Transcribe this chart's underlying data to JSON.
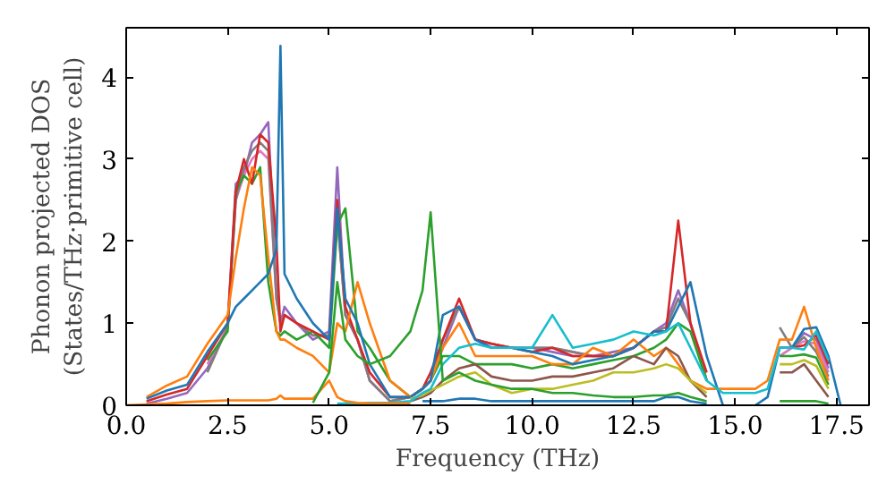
{
  "chart_data": {
    "type": "line",
    "xlabel": "Frequency (THz)",
    "ylabel": "Phonon projected DOS\n(States/THz·primitive cell)",
    "xlim": [
      0,
      18.3
    ],
    "ylim": [
      0,
      4.6
    ],
    "xticks": [
      {
        "value": 0,
        "label": "0.0"
      },
      2.5,
      {
        "value": 5,
        "label": "5.0"
      },
      7.5,
      {
        "value": 10,
        "label": "10.0"
      },
      12.5,
      {
        "value": 15,
        "label": "15.0"
      },
      17.5
    ],
    "yticks": [
      0,
      1,
      2,
      3,
      4
    ],
    "grid": false,
    "marker": "none",
    "line_style": "solid",
    "x": [
      0,
      0.5,
      1,
      1.5,
      2,
      2.5,
      2.7,
      2.9,
      3.1,
      3.3,
      3.5,
      3.7,
      3.8,
      3.9,
      4.2,
      4.6,
      5.0,
      5.2,
      5.4,
      5.7,
      6.0,
      6.5,
      7.0,
      7.3,
      7.5,
      7.8,
      8.2,
      8.6,
      9,
      9.5,
      10,
      10.5,
      11,
      11.5,
      12,
      12.5,
      13,
      13.3,
      13.6,
      13.9,
      14.3,
      14.7,
      15,
      15.5,
      15.8,
      16.1,
      16.4,
      16.7,
      17,
      17.3,
      17.6
    ],
    "series": [
      {
        "color": "#9467bd",
        "values": [
          null,
          0.02,
          0.08,
          0.15,
          0.45,
          0.95,
          2.7,
          2.8,
          3.2,
          3.3,
          3.45,
          1.4,
          1.0,
          1.2,
          1.0,
          0.8,
          0.9,
          2.9,
          1.1,
          0.8,
          0.3,
          0.05,
          0.1,
          0.2,
          0.3,
          0.7,
          1.2,
          0.8,
          0.7,
          0.7,
          0.7,
          0.65,
          0.6,
          0.6,
          0.65,
          0.7,
          0.9,
          1.0,
          1.4,
          1.0,
          0.3,
          null,
          null,
          null,
          null,
          0.6,
          0.7,
          0.88,
          0.8,
          0.45,
          null
        ]
      },
      {
        "color": "#e377c2",
        "values": [
          null,
          null,
          null,
          null,
          0.5,
          0.95,
          2.5,
          2.8,
          3.0,
          3.1,
          3.0,
          1.3,
          1.0,
          1.1,
          1.0,
          0.85,
          0.85,
          2.3,
          1.1,
          0.8,
          0.3,
          0.05,
          0.1,
          0.2,
          0.3,
          0.8,
          1.2,
          0.8,
          0.75,
          0.7,
          0.7,
          0.7,
          0.65,
          0.6,
          0.6,
          0.7,
          0.9,
          0.95,
          1.3,
          1.0,
          0.3,
          null,
          null,
          null,
          null,
          0.6,
          0.7,
          0.78,
          0.75,
          0.4,
          null
        ]
      },
      {
        "color": "#7f7f7f",
        "values": [
          null,
          null,
          null,
          null,
          0.4,
          0.95,
          2.5,
          2.9,
          3.1,
          3.2,
          3.1,
          1.3,
          1.0,
          1.1,
          1.0,
          0.85,
          0.85,
          2.3,
          1.1,
          0.8,
          0.3,
          0.05,
          0.1,
          0.2,
          0.3,
          0.8,
          1.2,
          0.8,
          0.75,
          0.7,
          0.7,
          0.7,
          0.65,
          0.6,
          0.6,
          0.7,
          0.9,
          0.95,
          1.3,
          1.0,
          0.3,
          null,
          null,
          null,
          null,
          0.95,
          0.7,
          0.83,
          0.65,
          0.35,
          null
        ]
      },
      {
        "color": "#2ca02c",
        "values": [
          null,
          null,
          null,
          null,
          0.55,
          0.9,
          2.6,
          2.8,
          2.7,
          2.9,
          1.5,
          0.9,
          0.85,
          0.9,
          0.8,
          0.9,
          0.7,
          2.2,
          2.4,
          0.9,
          0.7,
          0.3,
          0.1,
          0.2,
          0.3,
          0.6,
          0.6,
          0.5,
          0.5,
          0.5,
          0.45,
          0.5,
          0.45,
          0.5,
          0.55,
          0.6,
          0.7,
          0.8,
          1.0,
          0.9,
          0.3,
          null,
          null,
          null,
          null,
          0.6,
          0.6,
          0.62,
          0.58,
          0.25,
          null
        ]
      },
      {
        "color": "#d62728",
        "values": [
          null,
          0.05,
          0.13,
          0.2,
          0.6,
          1.0,
          2.6,
          3.0,
          2.7,
          3.3,
          3.2,
          2.0,
          0.9,
          1.1,
          1.0,
          0.9,
          0.8,
          2.5,
          1.2,
          0.8,
          0.4,
          0.1,
          0.1,
          0.2,
          0.4,
          0.8,
          1.3,
          0.8,
          0.75,
          0.7,
          0.65,
          0.7,
          0.6,
          0.6,
          0.6,
          0.7,
          0.9,
          0.9,
          2.25,
          1.0,
          0.4,
          null,
          null,
          null,
          null,
          0.7,
          0.7,
          0.73,
          0.85,
          0.5,
          null
        ]
      },
      {
        "color": "#ff7f0e",
        "values": [
          null,
          0.1,
          0.24,
          0.35,
          0.75,
          1.1,
          1.8,
          2.4,
          2.9,
          2.8,
          1.8,
          0.9,
          0.8,
          0.8,
          0.7,
          0.6,
          0.4,
          1.0,
          0.9,
          1.5,
          1.0,
          0.3,
          0.1,
          0.2,
          0.3,
          0.7,
          1.0,
          0.6,
          0.6,
          0.6,
          0.6,
          0.5,
          0.5,
          0.7,
          0.6,
          0.8,
          0.6,
          0.7,
          0.5,
          0.3,
          0.2,
          0.2,
          0.2,
          0.2,
          0.3,
          0.8,
          0.8,
          1.2,
          0.7,
          0.3,
          null
        ]
      },
      {
        "color": "#1f77b4",
        "values": [
          null,
          0.08,
          0.18,
          0.25,
          0.65,
          1.0,
          1.2,
          1.3,
          1.4,
          1.5,
          1.6,
          1.9,
          4.38,
          1.6,
          1.3,
          1.0,
          0.8,
          2.4,
          1.3,
          1.0,
          0.5,
          0.1,
          0.1,
          0.2,
          0.3,
          1.1,
          1.2,
          0.8,
          0.7,
          0.7,
          0.65,
          0.6,
          0.5,
          0.55,
          0.6,
          0.7,
          0.9,
          0.9,
          1.2,
          1.5,
          0.6,
          0,
          null,
          0,
          0.1,
          0.7,
          0.7,
          0.93,
          0.95,
          0.6,
          0
        ]
      },
      {
        "color": "#8c564b",
        "values": [
          null,
          null,
          null,
          null,
          null,
          null,
          null,
          null,
          null,
          null,
          null,
          null,
          null,
          null,
          null,
          null,
          null,
          null,
          null,
          null,
          null,
          null,
          0.05,
          0.1,
          0.15,
          0.3,
          0.45,
          0.5,
          0.35,
          0.3,
          0.3,
          0.35,
          0.35,
          0.4,
          0.45,
          0.6,
          0.5,
          0.7,
          0.6,
          0.3,
          0.1,
          null,
          null,
          null,
          null,
          0.4,
          0.4,
          0.5,
          0.3,
          0.1,
          null
        ]
      },
      {
        "color": "#bcbd22",
        "values": [
          null,
          null,
          null,
          null,
          null,
          null,
          null,
          null,
          null,
          null,
          null,
          null,
          null,
          null,
          null,
          null,
          null,
          null,
          null,
          null,
          null,
          null,
          0.08,
          0.12,
          0.18,
          0.25,
          0.35,
          0.4,
          0.25,
          0.15,
          0.2,
          0.2,
          0.25,
          0.3,
          0.4,
          0.4,
          0.45,
          0.5,
          0.45,
          0.3,
          0.15,
          null,
          null,
          null,
          null,
          0.5,
          0.5,
          0.55,
          0.48,
          0.2,
          null
        ]
      },
      {
        "color": "#17becf",
        "values": [
          null,
          null,
          null,
          null,
          null,
          null,
          null,
          null,
          null,
          null,
          null,
          null,
          null,
          null,
          null,
          null,
          null,
          0.02,
          0.02,
          0.02,
          0.03,
          0.03,
          0.05,
          0.15,
          0.2,
          0.5,
          0.7,
          0.75,
          0.7,
          0.7,
          0.7,
          1.1,
          0.7,
          0.75,
          0.8,
          0.9,
          0.85,
          0.9,
          1.0,
          0.7,
          0.3,
          0.15,
          0.15,
          0.15,
          0.2,
          0.7,
          0.7,
          0.68,
          0.9,
          0.55,
          null
        ]
      },
      {
        "color": "#1f77b4",
        "values": [
          null,
          null,
          null,
          null,
          null,
          null,
          null,
          null,
          null,
          null,
          null,
          null,
          null,
          null,
          null,
          null,
          null,
          null,
          null,
          null,
          null,
          null,
          null,
          0.05,
          0.05,
          0.05,
          0.08,
          0.08,
          0.05,
          0.05,
          0.05,
          0.05,
          0.05,
          0.05,
          0.05,
          0.05,
          0.05,
          0.1,
          0.1,
          0.05,
          0.02,
          null,
          null,
          null,
          null,
          null,
          null,
          null,
          null,
          null,
          null
        ]
      },
      {
        "color": "#ff7f0e",
        "values": [
          0,
          0.01,
          0.02,
          0.04,
          0.05,
          0.06,
          0.06,
          0.06,
          0.06,
          0.06,
          0.06,
          0.08,
          0.12,
          0.08,
          0.08,
          0.08,
          0.3,
          0.1,
          0.05,
          0.03,
          0.02,
          0.02,
          0.02,
          null,
          null,
          null,
          null,
          null,
          null,
          null,
          null,
          null,
          null,
          null,
          null,
          null,
          null,
          null,
          null,
          null,
          null,
          null,
          null,
          null,
          null,
          null,
          null,
          null,
          null,
          null,
          null
        ]
      },
      {
        "color": "#2ca02c",
        "values": [
          null,
          null,
          null,
          null,
          null,
          null,
          null,
          null,
          null,
          null,
          null,
          null,
          null,
          null,
          null,
          0.03,
          0.4,
          1.5,
          0.8,
          0.6,
          0.5,
          0.6,
          0.9,
          1.4,
          2.35,
          0.3,
          0.4,
          0.3,
          0.25,
          0.2,
          0.2,
          0.15,
          0.15,
          0.12,
          0.1,
          0.1,
          0.12,
          0.12,
          0.15,
          0.1,
          0.05,
          null,
          null,
          null,
          null,
          0.05,
          0.05,
          0.05,
          0.05,
          0.02,
          null
        ]
      }
    ]
  }
}
